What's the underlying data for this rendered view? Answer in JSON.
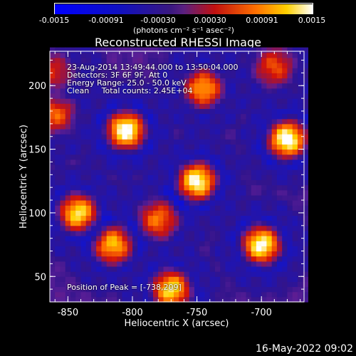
{
  "colorbar": {
    "ticks": [
      "-0.0015",
      "-0.00091",
      "-0.00030",
      "0.00030",
      "0.00091",
      "0.0015"
    ],
    "unit_label": "(photons cm⁻² s⁻¹ asec⁻²)",
    "range": [
      -0.0015,
      0.0015
    ]
  },
  "annotations": {
    "time": "23-Aug-2014 13:49:44.000 to 13:50:04.000",
    "detectors": "Detectors: 3F 6F 9F, Att 0",
    "energy": "Energy Range: 25.0 - 50.0 keV",
    "clean": "Clean     Total counts: 2.45E+04",
    "peak": "Position of Peak = [-738,209]"
  },
  "footer": {
    "timestamp": "16-May-2022 09:02"
  },
  "chart_data": {
    "type": "heatmap",
    "title": "Reconstructed RHESSI Image",
    "xlabel": "Heliocentric X (arcsec)",
    "ylabel": "Heliocentric Y (arcsec)",
    "xlim": [
      -864,
      -667
    ],
    "ylim": [
      30,
      227
    ],
    "x_ticks": [
      "-850",
      "-800",
      "-750",
      "-700"
    ],
    "y_ticks": [
      "50",
      "100",
      "150",
      "200"
    ],
    "blobs": [
      {
        "x": -805,
        "y": 165,
        "strength": 1.0
      },
      {
        "x": -750,
        "y": 125,
        "strength": 0.95
      },
      {
        "x": -680,
        "y": 158,
        "strength": 1.0
      },
      {
        "x": -700,
        "y": 75,
        "strength": 0.95
      },
      {
        "x": -842,
        "y": 100,
        "strength": 0.85
      },
      {
        "x": -815,
        "y": 75,
        "strength": 0.75
      },
      {
        "x": -780,
        "y": 95,
        "strength": 0.6
      },
      {
        "x": -770,
        "y": 40,
        "strength": 0.85
      },
      {
        "x": -745,
        "y": 198,
        "strength": 0.7
      },
      {
        "x": -690,
        "y": 215,
        "strength": 0.5
      },
      {
        "x": -862,
        "y": 210,
        "strength": 0.4
      },
      {
        "x": -860,
        "y": 178,
        "strength": 0.55
      }
    ]
  }
}
